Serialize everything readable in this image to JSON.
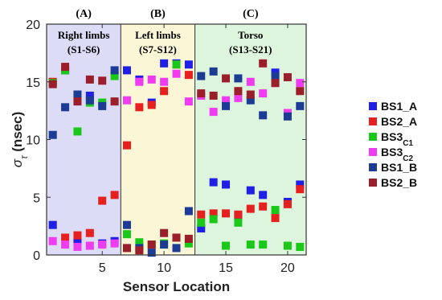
{
  "chart_data": {
    "type": "scatter",
    "xlabel": "Sensor Location",
    "ylabel": "σ_τ (nsec)",
    "xlim": [
      0.5,
      21.5
    ],
    "ylim": [
      0,
      20
    ],
    "xticks": [
      5,
      10,
      15,
      20
    ],
    "yticks": [
      0,
      5,
      10,
      15,
      20
    ],
    "grid": false,
    "legend_placement": "outside-right",
    "regions": [
      {
        "id": "A",
        "label": "(A)",
        "name": "Right limbs",
        "range": "(S1-S6)",
        "x_start": 0.5,
        "x_end": 6.5,
        "color": "#dcdcf7"
      },
      {
        "id": "B",
        "label": "(B)",
        "name": "Left limbs",
        "range": "(S7-S12)",
        "x_start": 6.5,
        "x_end": 12.5,
        "color": "#fbf7d6"
      },
      {
        "id": "C",
        "label": "(C)",
        "name": "Torso",
        "range": "(S13-S21)",
        "x_start": 12.5,
        "x_end": 21.5,
        "color": "#dcf5dc"
      }
    ],
    "series": [
      {
        "name": "BS1_A",
        "name_main": "BS1_A",
        "name_sub": "",
        "color": "#1f1fe6",
        "x": [
          1,
          2,
          3,
          4,
          5,
          6,
          7,
          8,
          9,
          10,
          11,
          12,
          13,
          14,
          15,
          16,
          17,
          18,
          19,
          20,
          21
        ],
        "y": [
          2.6,
          16.0,
          1.2,
          13.8,
          1.0,
          1.2,
          16.0,
          15.2,
          13.2,
          16.6,
          16.6,
          16.5,
          2.3,
          6.3,
          6.1,
          3.4,
          5.6,
          5.2,
          15.8,
          4.6,
          6.1
        ]
      },
      {
        "name": "BS2_A",
        "name_main": "BS2_A",
        "name_sub": "",
        "color": "#e61f1f",
        "x": [
          1,
          2,
          3,
          4,
          5,
          6,
          7,
          8,
          9,
          10,
          11,
          12,
          13,
          14,
          15,
          16,
          17,
          18,
          19,
          20,
          21
        ],
        "y": [
          15.0,
          1.5,
          1.7,
          1.9,
          4.7,
          5.2,
          9.5,
          12.8,
          13.0,
          14.2,
          16.5,
          15.6,
          3.5,
          3.6,
          3.6,
          3.5,
          4.0,
          4.2,
          3.2,
          4.4,
          5.7
        ]
      },
      {
        "name": "BS3C1",
        "name_main": "BS3",
        "name_sub": "C1",
        "color": "#19c819",
        "x": [
          1,
          2,
          3,
          4,
          5,
          6,
          7,
          8,
          9,
          10,
          11,
          12,
          13,
          14,
          15,
          16,
          17,
          18,
          19,
          20,
          21
        ],
        "y": [
          14.9,
          16.0,
          10.7,
          13.2,
          13.2,
          15.5,
          1.8,
          1.1,
          0.9,
          1.0,
          16.5,
          1.0,
          2.8,
          3.1,
          0.8,
          2.8,
          0.9,
          0.9,
          3.9,
          0.8,
          0.7
        ]
      },
      {
        "name": "BS3C2",
        "name_main": "BS3",
        "name_sub": "C2",
        "color": "#f03cf0",
        "x": [
          1,
          2,
          3,
          4,
          5,
          6,
          7,
          8,
          9,
          10,
          11,
          12,
          13,
          14,
          15,
          16,
          17,
          18,
          19,
          20,
          21
        ],
        "y": [
          1.2,
          0.9,
          0.7,
          0.8,
          0.9,
          1.0,
          13.4,
          15.0,
          15.2,
          15.0,
          15.7,
          13.3,
          13.8,
          12.4,
          13.4,
          13.6,
          15.0,
          14.0,
          14.9,
          12.3,
          14.9
        ]
      },
      {
        "name": "BS1_B",
        "name_main": "BS1_B",
        "name_sub": "",
        "color": "#1c3b94",
        "x": [
          1,
          2,
          3,
          4,
          5,
          6,
          7,
          8,
          9,
          10,
          11,
          12,
          13,
          14,
          15,
          16,
          17,
          18,
          19,
          20,
          21
        ],
        "y": [
          10.4,
          12.8,
          13.9,
          13.4,
          12.9,
          16.0,
          2.6,
          0.6,
          0.2,
          0.9,
          0.6,
          3.8,
          15.5,
          15.9,
          12.9,
          15.3,
          13.4,
          12.1,
          15.5,
          12.0,
          12.9
        ]
      },
      {
        "name": "BS2_B",
        "name_main": "BS2_B",
        "name_sub": "",
        "color": "#9b1f2a",
        "x": [
          1,
          2,
          3,
          4,
          5,
          6,
          7,
          8,
          9,
          10,
          11,
          12,
          13,
          14,
          15,
          16,
          17,
          18,
          19,
          20,
          21
        ],
        "y": [
          14.8,
          16.3,
          13.3,
          15.2,
          15.1,
          13.3,
          0.6,
          0.4,
          0.9,
          1.9,
          1.5,
          1.4,
          14.0,
          13.8,
          15.3,
          14.2,
          13.9,
          16.6,
          14.9,
          15.4,
          14.2
        ]
      }
    ]
  }
}
